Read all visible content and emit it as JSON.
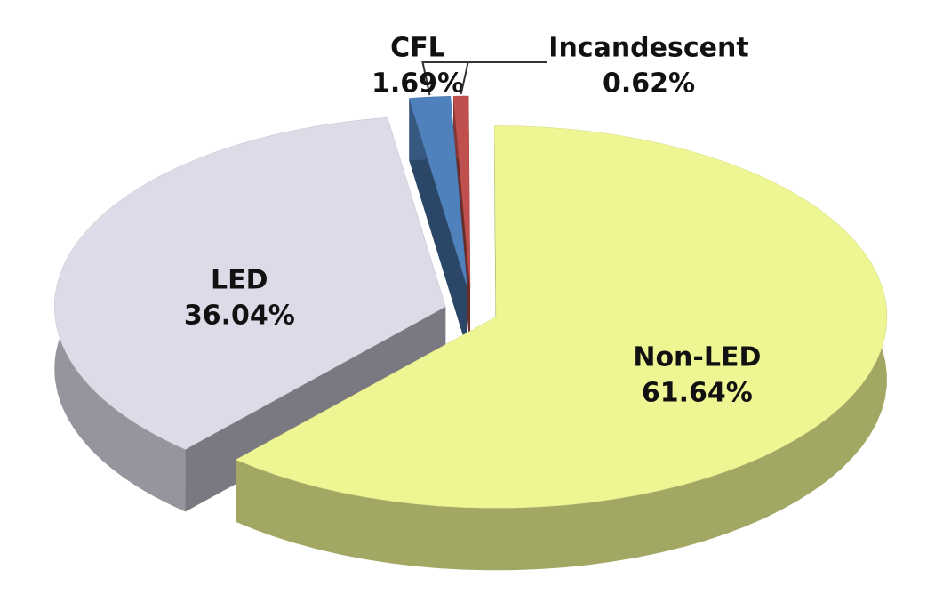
{
  "chart_data": {
    "type": "pie",
    "three_d": true,
    "exploded": true,
    "categories": [
      "LED",
      "CFL",
      "Incandescent",
      "Non-LED"
    ],
    "values": [
      36.04,
      1.69,
      0.62,
      61.64
    ],
    "value_labels": [
      "36.04%",
      "1.69%",
      "0.62%",
      "61.64%"
    ],
    "colors": [
      "#dedae8",
      "#4f81bd",
      "#c0504d",
      "#eef593"
    ]
  }
}
